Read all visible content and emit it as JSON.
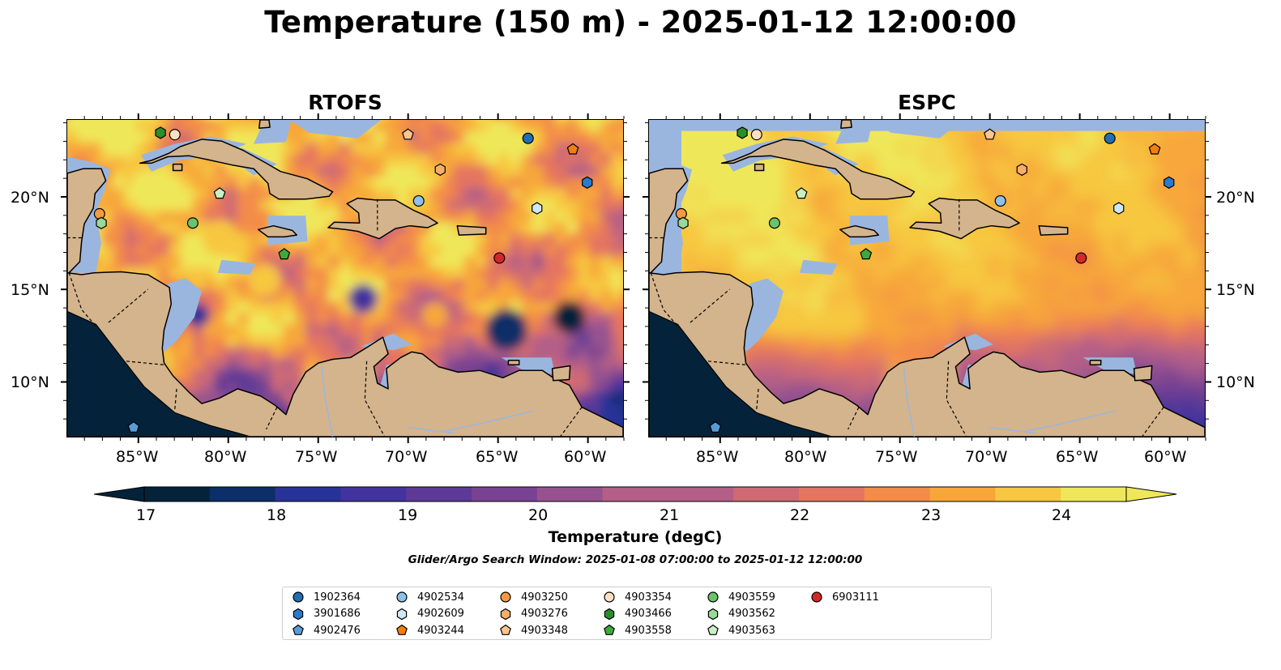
{
  "title": "Temperature (150 m) - 2025-01-12 12:00:00",
  "panels": [
    {
      "title": "RTOFS"
    },
    {
      "title": "ESPC"
    }
  ],
  "axes": {
    "lon_ticks": [
      "85°W",
      "80°W",
      "75°W",
      "70°W",
      "65°W",
      "60°W"
    ],
    "lat_ticks": [
      "20°N",
      "15°N",
      "10°N"
    ],
    "extent": {
      "lon": [
        -89,
        -58
      ],
      "lat": [
        7,
        24.2
      ]
    }
  },
  "colorbar": {
    "label": "Temperature (degC)",
    "ticks": [
      "17",
      "18",
      "19",
      "20",
      "21",
      "22",
      "23",
      "24"
    ],
    "range": [
      17,
      24.5
    ],
    "colormap": "thermal",
    "extend": "both"
  },
  "search_window": "Glider/Argo Search Window: 2025-01-08 07:00:00 to 2025-01-12 12:00:00",
  "legend": {
    "items": [
      {
        "id": "1902364",
        "marker": "circle",
        "color": "#1f6fb4"
      },
      {
        "id": "3901686",
        "marker": "hexagon",
        "color": "#2b7bcc"
      },
      {
        "id": "4902476",
        "marker": "pentagon",
        "color": "#5b9bd5"
      },
      {
        "id": "4902534",
        "marker": "circle",
        "color": "#8fc1e8"
      },
      {
        "id": "4902609",
        "marker": "hexagon",
        "color": "#cfe6f7"
      },
      {
        "id": "4903244",
        "marker": "pentagon",
        "color": "#f07f12"
      },
      {
        "id": "4903250",
        "marker": "circle",
        "color": "#f59a3e"
      },
      {
        "id": "4903276",
        "marker": "hexagon",
        "color": "#f8ad6a"
      },
      {
        "id": "4903348",
        "marker": "pentagon",
        "color": "#fbc58f"
      },
      {
        "id": "4903354",
        "marker": "circle",
        "color": "#fde0c2"
      },
      {
        "id": "4903466",
        "marker": "hexagon",
        "color": "#2a8f2a"
      },
      {
        "id": "4903558",
        "marker": "pentagon",
        "color": "#3cab3c"
      },
      {
        "id": "4903559",
        "marker": "circle",
        "color": "#6cc36c"
      },
      {
        "id": "4903562",
        "marker": "hexagon",
        "color": "#9ad89a"
      },
      {
        "id": "4903563",
        "marker": "pentagon",
        "color": "#c9efc4"
      },
      {
        "id": "6903111",
        "marker": "circle",
        "color": "#d62728"
      }
    ]
  },
  "floats": [
    {
      "id": "1902364",
      "lon": -63.3,
      "lat": 23.2
    },
    {
      "id": "3901686",
      "lon": -60.0,
      "lat": 20.8
    },
    {
      "id": "4902476",
      "lon": -85.3,
      "lat": 7.5
    },
    {
      "id": "4902534",
      "lon": -69.4,
      "lat": 19.8
    },
    {
      "id": "4902609",
      "lon": -62.8,
      "lat": 19.4
    },
    {
      "id": "4903244",
      "lon": -60.8,
      "lat": 22.6
    },
    {
      "id": "4903250",
      "lon": -87.2,
      "lat": 19.1
    },
    {
      "id": "4903276",
      "lon": -68.2,
      "lat": 21.5
    },
    {
      "id": "4903348",
      "lon": -70.0,
      "lat": 23.4
    },
    {
      "id": "4903354",
      "lon": -83.0,
      "lat": 23.4
    },
    {
      "id": "4903466",
      "lon": -83.8,
      "lat": 23.5
    },
    {
      "id": "4903558",
      "lon": -76.9,
      "lat": 16.9
    },
    {
      "id": "4903559",
      "lon": -82.0,
      "lat": 18.6
    },
    {
      "id": "4903562",
      "lon": -87.1,
      "lat": 18.6
    },
    {
      "id": "4903563",
      "lon": -80.5,
      "lat": 20.2
    },
    {
      "id": "6903111",
      "lon": -64.9,
      "lat": 16.7
    }
  ]
}
